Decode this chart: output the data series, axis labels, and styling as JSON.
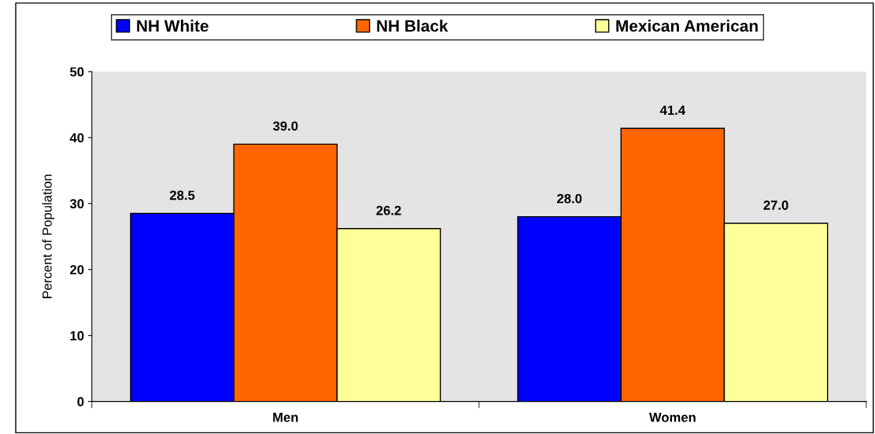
{
  "chart_data": {
    "type": "bar",
    "ylabel": "Percent of Population",
    "categories": [
      "Men",
      "Women"
    ],
    "series": [
      {
        "name": "NH White",
        "color": "#0000ff",
        "values": [
          28.5,
          28.0
        ],
        "value_labels": [
          "28.5",
          "28.0"
        ]
      },
      {
        "name": "NH Black",
        "color": "#ff6600",
        "values": [
          39.0,
          41.4
        ],
        "value_labels": [
          "39.0",
          "41.4"
        ]
      },
      {
        "name": "Mexican American",
        "color": "#ffff99",
        "values": [
          26.2,
          27.0
        ],
        "value_labels": [
          "26.2",
          "27.0"
        ]
      }
    ],
    "ylim": [
      0,
      50
    ],
    "yticks": [
      0,
      10,
      20,
      30,
      40,
      50
    ],
    "legend": "top",
    "grid": false
  }
}
